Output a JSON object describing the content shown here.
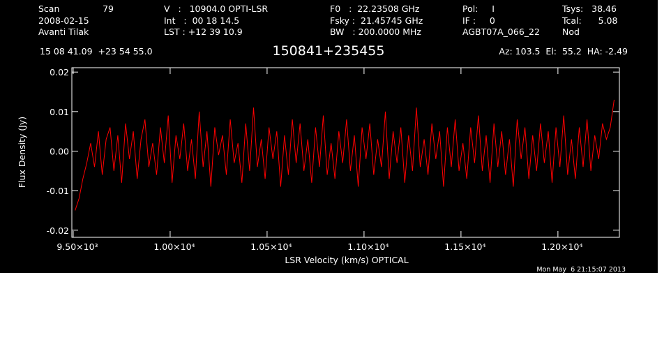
{
  "header": {
    "scan_label": "Scan",
    "scan": "79",
    "date": "2008-02-15",
    "observer": "Avanti Tilak",
    "velocity": "V   :   10904.0 OPTI-LSR",
    "int": "Int   :  00 18 14.5",
    "lst": "LST : +12 39 10.9",
    "f0": "F0   :  22.23508 GHz",
    "fsky": "Fsky :  21.45745 GHz",
    "bw": "BW   : 200.0000 MHz",
    "pol": "Pol:     I",
    "if": "IF :     0",
    "project": "AGBT07A_066_22",
    "tsys": "Tsys:   38.46",
    "tcal": "Tcal:      5.08",
    "mode": "Nod",
    "coords": "15 08 41.09  +23 54 55.0",
    "azel": "Az: 103.5  El:  55.2  HA: -2.49",
    "timestamp": "Mon May  6 21:15:07 2013"
  },
  "chart_data": {
    "type": "line",
    "title": "150841+235455",
    "x_label": "LSR Velocity (km/s) OPTICAL",
    "y_label": "Flux Density (Jy)",
    "xlim": [
      9493,
      12317
    ],
    "ylim": [
      -0.0218,
      0.0211
    ],
    "xticks": [
      {
        "value": 9500,
        "label": "9.50×10³"
      },
      {
        "value": 10000,
        "label": "1.00×10⁴"
      },
      {
        "value": 10500,
        "label": "1.05×10⁴"
      },
      {
        "value": 11000,
        "label": "1.10×10⁴"
      },
      {
        "value": 11500,
        "label": "1.15×10⁴"
      },
      {
        "value": 12000,
        "label": "1.20×10⁴"
      }
    ],
    "yticks": [
      -0.02,
      -0.01,
      {
        "value": 0,
        "label": "0.00"
      },
      0.01,
      0.02
    ],
    "series": [
      {
        "color": "#ff0000",
        "x": [
          9510,
          9530,
          9550,
          9570,
          9590,
          9610,
          9630,
          9650,
          9670,
          9690,
          9710,
          9730,
          9750,
          9770,
          9790,
          9810,
          9830,
          9850,
          9870,
          9890,
          9910,
          9930,
          9950,
          9970,
          9990,
          10010,
          10030,
          10050,
          10070,
          10090,
          10110,
          10130,
          10150,
          10170,
          10190,
          10210,
          10230,
          10250,
          10270,
          10290,
          10310,
          10330,
          10350,
          10370,
          10390,
          10410,
          10430,
          10450,
          10470,
          10490,
          10510,
          10530,
          10550,
          10570,
          10590,
          10610,
          10630,
          10650,
          10670,
          10690,
          10710,
          10730,
          10750,
          10770,
          10790,
          10810,
          10830,
          10850,
          10870,
          10890,
          10910,
          10930,
          10950,
          10970,
          10990,
          11010,
          11030,
          11050,
          11070,
          11090,
          11110,
          11130,
          11150,
          11170,
          11190,
          11210,
          11230,
          11250,
          11270,
          11290,
          11310,
          11330,
          11350,
          11370,
          11390,
          11410,
          11430,
          11450,
          11470,
          11490,
          11510,
          11530,
          11550,
          11570,
          11590,
          11610,
          11630,
          11650,
          11670,
          11690,
          11710,
          11730,
          11750,
          11770,
          11790,
          11810,
          11830,
          11850,
          11870,
          11890,
          11910,
          11930,
          11950,
          11970,
          11990,
          12010,
          12030,
          12050,
          12070,
          12090,
          12110,
          12130,
          12150,
          12170,
          12190,
          12210,
          12230,
          12250,
          12270,
          12290
        ],
        "values": [
          -0.015,
          -0.012,
          -0.007,
          -0.003,
          0.002,
          -0.004,
          0.005,
          -0.006,
          0.003,
          0.006,
          -0.005,
          0.004,
          -0.008,
          0.007,
          -0.002,
          0.005,
          -0.007,
          0.003,
          0.008,
          -0.004,
          0.002,
          -0.006,
          0.006,
          -0.003,
          0.009,
          -0.008,
          0.004,
          -0.002,
          0.007,
          -0.005,
          0.003,
          -0.007,
          0.01,
          -0.004,
          0.005,
          -0.009,
          0.006,
          -0.001,
          0.004,
          -0.006,
          0.008,
          -0.003,
          0.002,
          -0.008,
          0.007,
          -0.005,
          0.011,
          -0.004,
          0.003,
          -0.007,
          0.006,
          -0.002,
          0.005,
          -0.009,
          0.004,
          -0.006,
          0.008,
          -0.003,
          0.007,
          -0.005,
          0.003,
          -0.008,
          0.006,
          -0.004,
          0.009,
          -0.006,
          0.002,
          -0.007,
          0.005,
          -0.003,
          0.008,
          -0.005,
          0.004,
          -0.009,
          0.006,
          -0.002,
          0.007,
          -0.006,
          0.003,
          -0.004,
          0.01,
          -0.007,
          0.005,
          -0.003,
          0.006,
          -0.008,
          0.004,
          -0.005,
          0.011,
          -0.004,
          0.003,
          -0.006,
          0.007,
          -0.002,
          0.005,
          -0.009,
          0.006,
          -0.004,
          0.008,
          -0.005,
          0.002,
          -0.007,
          0.006,
          -0.003,
          0.009,
          -0.005,
          0.004,
          -0.008,
          0.007,
          -0.004,
          0.005,
          -0.006,
          0.003,
          -0.009,
          0.008,
          -0.002,
          0.006,
          -0.007,
          0.004,
          -0.005,
          0.007,
          -0.003,
          0.005,
          -0.008,
          0.006,
          -0.004,
          0.009,
          -0.006,
          0.003,
          -0.007,
          0.006,
          -0.004,
          0.008,
          -0.005,
          0.004,
          -0.002,
          0.007,
          0.003,
          0.006,
          0.013
        ]
      }
    ]
  }
}
